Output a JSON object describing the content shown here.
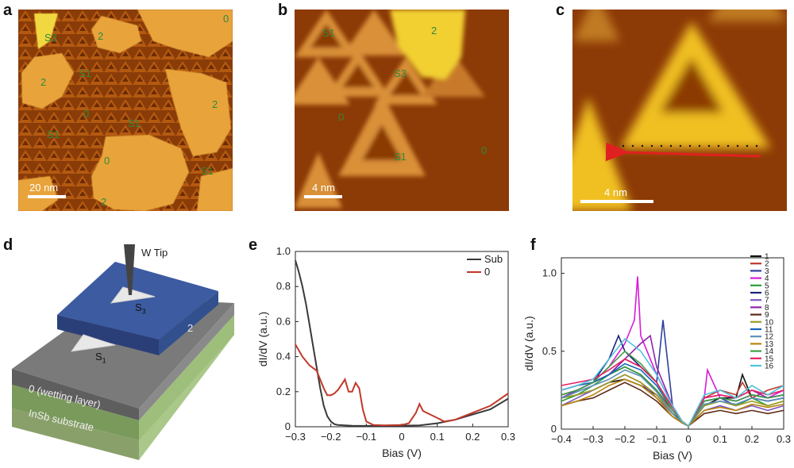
{
  "panels": {
    "a": {
      "letter": "a",
      "scale": "20 nm",
      "labels": [
        "S3",
        "2",
        "0",
        "2",
        "S1",
        "S1",
        "0",
        "S1",
        "0",
        "2",
        "2",
        "S1",
        "2"
      ]
    },
    "b": {
      "letter": "b",
      "scale": "4 nm",
      "labels": [
        "S1",
        "2",
        "S3",
        "0",
        "S1",
        "0"
      ]
    },
    "c": {
      "letter": "c",
      "scale": "4 nm"
    },
    "d": {
      "letter": "d",
      "tip": "W Tip",
      "s3": "S",
      "s3sub": "3",
      "s1": "S",
      "s1sub": "1",
      "layer2": "2",
      "wetting": "0 (wetting layer)",
      "substrate": "InSb substrate"
    },
    "e": {
      "letter": "e"
    },
    "f": {
      "letter": "f"
    }
  },
  "chart_data": [
    {
      "type": "line",
      "panel": "e",
      "xlabel": "Bias (V)",
      "ylabel": "dI/dV (a.u.)",
      "xlim": [
        -0.3,
        0.3
      ],
      "ylim": [
        0,
        1.0
      ],
      "xticks": [
        "-0.3",
        "-0.2",
        "-0.1",
        "0",
        "0.1",
        "0.2",
        "0.3"
      ],
      "yticks": [
        "0",
        "0.2",
        "0.4",
        "0.6",
        "0.8",
        "1.0"
      ],
      "legend_position": "top-right",
      "series": [
        {
          "name": "Sub",
          "color": "#3a3a3a",
          "x": [
            -0.3,
            -0.29,
            -0.28,
            -0.27,
            -0.26,
            -0.25,
            -0.24,
            -0.23,
            -0.22,
            -0.21,
            -0.2,
            -0.19,
            -0.18,
            -0.16,
            -0.14,
            -0.12,
            -0.1,
            -0.05,
            0,
            0.05,
            0.1,
            0.15,
            0.2,
            0.25,
            0.3
          ],
          "y": [
            0.95,
            0.88,
            0.8,
            0.7,
            0.58,
            0.46,
            0.34,
            0.22,
            0.12,
            0.06,
            0.03,
            0.015,
            0.01,
            0.008,
            0.006,
            0.005,
            0.005,
            0.005,
            0.006,
            0.008,
            0.02,
            0.04,
            0.07,
            0.1,
            0.16
          ]
        },
        {
          "name": "0",
          "color": "#c0392b",
          "x": [
            -0.3,
            -0.28,
            -0.26,
            -0.24,
            -0.22,
            -0.21,
            -0.2,
            -0.19,
            -0.18,
            -0.17,
            -0.16,
            -0.15,
            -0.14,
            -0.13,
            -0.12,
            -0.11,
            -0.1,
            -0.08,
            -0.05,
            0,
            0.02,
            0.04,
            0.05,
            0.06,
            0.08,
            0.1,
            0.12,
            0.15,
            0.2,
            0.25,
            0.3
          ],
          "y": [
            0.47,
            0.4,
            0.35,
            0.32,
            0.22,
            0.18,
            0.18,
            0.19,
            0.21,
            0.24,
            0.27,
            0.2,
            0.2,
            0.25,
            0.22,
            0.1,
            0.03,
            0.01,
            0.008,
            0.01,
            0.02,
            0.08,
            0.13,
            0.09,
            0.07,
            0.05,
            0.03,
            0.04,
            0.08,
            0.12,
            0.19
          ]
        }
      ]
    },
    {
      "type": "line",
      "panel": "f",
      "xlabel": "Bias (V)",
      "ylabel": "dI/dV (a.u.)",
      "xlim": [
        -0.4,
        0.3
      ],
      "ylim": [
        0,
        1.1
      ],
      "xticks": [
        "-0.4",
        "-0.3",
        "-0.2",
        "-0.1",
        "0",
        "0.1",
        "0.2",
        "0.3"
      ],
      "yticks": [
        "0",
        "0.5",
        "1.0"
      ],
      "legend_position": "top-right",
      "series": [
        {
          "name": "1",
          "color": "#111111",
          "x": [
            -0.4,
            -0.35,
            -0.3,
            -0.25,
            -0.2,
            -0.15,
            -0.1,
            -0.05,
            -0.02,
            0,
            0.05,
            0.1,
            0.15,
            0.17,
            0.2,
            0.25,
            0.3
          ],
          "y": [
            0.2,
            0.22,
            0.25,
            0.3,
            0.32,
            0.28,
            0.22,
            0.1,
            0.05,
            0.02,
            0.15,
            0.2,
            0.2,
            0.35,
            0.2,
            0.18,
            0.2
          ]
        },
        {
          "name": "2",
          "color": "#c0392b",
          "x": [
            -0.4,
            -0.35,
            -0.3,
            -0.25,
            -0.2,
            -0.15,
            -0.1,
            -0.05,
            -0.02,
            0,
            0.05,
            0.1,
            0.15,
            0.17,
            0.2,
            0.25,
            0.3
          ],
          "y": [
            0.25,
            0.28,
            0.3,
            0.35,
            0.4,
            0.35,
            0.25,
            0.12,
            0.05,
            0.02,
            0.2,
            0.25,
            0.22,
            0.3,
            0.2,
            0.25,
            0.28
          ]
        },
        {
          "name": "3",
          "color": "#2e3f9e",
          "x": [
            -0.4,
            -0.35,
            -0.3,
            -0.25,
            -0.2,
            -0.15,
            -0.1,
            -0.08,
            -0.05,
            -0.02,
            0,
            0.05,
            0.1,
            0.15,
            0.2,
            0.25,
            0.3
          ],
          "y": [
            0.2,
            0.25,
            0.3,
            0.35,
            0.45,
            0.4,
            0.3,
            0.7,
            0.15,
            0.05,
            0.02,
            0.18,
            0.2,
            0.15,
            0.2,
            0.18,
            0.2
          ]
        },
        {
          "name": "4",
          "color": "#d81bd8",
          "x": [
            -0.4,
            -0.35,
            -0.3,
            -0.25,
            -0.2,
            -0.17,
            -0.16,
            -0.15,
            -0.1,
            -0.05,
            -0.02,
            0,
            0.05,
            0.06,
            0.1,
            0.15,
            0.2,
            0.25,
            0.3
          ],
          "y": [
            0.25,
            0.28,
            0.3,
            0.4,
            0.55,
            0.7,
            0.98,
            0.6,
            0.35,
            0.15,
            0.05,
            0.02,
            0.2,
            0.38,
            0.2,
            0.18,
            0.22,
            0.2,
            0.25
          ]
        },
        {
          "name": "5",
          "color": "#2a9d3a",
          "x": [
            -0.4,
            -0.35,
            -0.3,
            -0.25,
            -0.2,
            -0.15,
            -0.1,
            -0.05,
            -0.02,
            0,
            0.05,
            0.1,
            0.15,
            0.2,
            0.25,
            0.3
          ],
          "y": [
            0.18,
            0.22,
            0.28,
            0.35,
            0.4,
            0.35,
            0.25,
            0.1,
            0.04,
            0.02,
            0.15,
            0.18,
            0.15,
            0.2,
            0.15,
            0.18
          ]
        },
        {
          "name": "6",
          "color": "#1a237e",
          "x": [
            -0.4,
            -0.35,
            -0.3,
            -0.25,
            -0.22,
            -0.2,
            -0.15,
            -0.1,
            -0.05,
            -0.02,
            0,
            0.05,
            0.1,
            0.15,
            0.2,
            0.25,
            0.3
          ],
          "y": [
            0.22,
            0.25,
            0.3,
            0.45,
            0.6,
            0.5,
            0.4,
            0.3,
            0.12,
            0.05,
            0.02,
            0.18,
            0.2,
            0.18,
            0.22,
            0.2,
            0.22
          ]
        },
        {
          "name": "7",
          "color": "#7e57c2",
          "x": [
            -0.4,
            -0.35,
            -0.3,
            -0.25,
            -0.2,
            -0.15,
            -0.1,
            -0.05,
            -0.02,
            0,
            0.05,
            0.1,
            0.15,
            0.2,
            0.25,
            0.3
          ],
          "y": [
            0.15,
            0.2,
            0.25,
            0.3,
            0.35,
            0.3,
            0.2,
            0.1,
            0.04,
            0.02,
            0.12,
            0.15,
            0.12,
            0.15,
            0.12,
            0.15
          ]
        },
        {
          "name": "8",
          "color": "#8e24aa",
          "x": [
            -0.4,
            -0.35,
            -0.3,
            -0.25,
            -0.2,
            -0.15,
            -0.12,
            -0.1,
            -0.05,
            -0.02,
            0,
            0.05,
            0.1,
            0.15,
            0.2,
            0.25,
            0.3
          ],
          "y": [
            0.2,
            0.25,
            0.3,
            0.35,
            0.45,
            0.55,
            0.6,
            0.4,
            0.15,
            0.05,
            0.02,
            0.2,
            0.22,
            0.2,
            0.25,
            0.2,
            0.22
          ]
        },
        {
          "name": "9",
          "color": "#5d2a1a",
          "x": [
            -0.4,
            -0.35,
            -0.3,
            -0.25,
            -0.2,
            -0.15,
            -0.1,
            -0.05,
            -0.02,
            0,
            0.05,
            0.1,
            0.15,
            0.2,
            0.25,
            0.3
          ],
          "y": [
            0.15,
            0.18,
            0.2,
            0.25,
            0.3,
            0.25,
            0.18,
            0.08,
            0.04,
            0.02,
            0.1,
            0.12,
            0.1,
            0.12,
            0.1,
            0.12
          ]
        },
        {
          "name": "10",
          "color": "#9e9d24",
          "x": [
            -0.4,
            -0.35,
            -0.3,
            -0.25,
            -0.2,
            -0.15,
            -0.1,
            -0.05,
            -0.02,
            0,
            0.05,
            0.1,
            0.15,
            0.2,
            0.25,
            0.3
          ],
          "y": [
            0.2,
            0.22,
            0.25,
            0.3,
            0.35,
            0.3,
            0.22,
            0.1,
            0.04,
            0.02,
            0.15,
            0.18,
            0.15,
            0.18,
            0.15,
            0.18
          ]
        },
        {
          "name": "11",
          "color": "#1565c0",
          "x": [
            -0.4,
            -0.35,
            -0.3,
            -0.25,
            -0.2,
            -0.15,
            -0.1,
            -0.05,
            -0.02,
            0,
            0.05,
            0.1,
            0.15,
            0.2,
            0.25,
            0.3
          ],
          "y": [
            0.25,
            0.28,
            0.3,
            0.35,
            0.42,
            0.38,
            0.28,
            0.12,
            0.05,
            0.02,
            0.18,
            0.2,
            0.18,
            0.22,
            0.2,
            0.22
          ]
        },
        {
          "name": "12",
          "color": "#5c8fb5",
          "x": [
            -0.4,
            -0.35,
            -0.3,
            -0.25,
            -0.2,
            -0.15,
            -0.1,
            -0.05,
            -0.02,
            0,
            0.05,
            0.1,
            0.15,
            0.2,
            0.25,
            0.3
          ],
          "y": [
            0.2,
            0.24,
            0.28,
            0.32,
            0.38,
            0.34,
            0.24,
            0.1,
            0.04,
            0.02,
            0.16,
            0.18,
            0.16,
            0.2,
            0.18,
            0.2
          ]
        },
        {
          "name": "13",
          "color": "#b8860b",
          "x": [
            -0.4,
            -0.35,
            -0.3,
            -0.25,
            -0.2,
            -0.15,
            -0.1,
            -0.05,
            -0.02,
            0,
            0.05,
            0.1,
            0.15,
            0.2,
            0.25,
            0.3
          ],
          "y": [
            0.15,
            0.18,
            0.22,
            0.28,
            0.32,
            0.28,
            0.2,
            0.08,
            0.04,
            0.02,
            0.12,
            0.14,
            0.12,
            0.16,
            0.14,
            0.16
          ]
        },
        {
          "name": "14",
          "color": "#43a047",
          "x": [
            -0.4,
            -0.35,
            -0.3,
            -0.25,
            -0.2,
            -0.15,
            -0.1,
            -0.05,
            -0.02,
            0,
            0.05,
            0.1,
            0.15,
            0.2,
            0.25,
            0.3
          ],
          "y": [
            0.22,
            0.25,
            0.3,
            0.4,
            0.5,
            0.42,
            0.3,
            0.12,
            0.05,
            0.02,
            0.18,
            0.2,
            0.18,
            0.22,
            0.2,
            0.22
          ]
        },
        {
          "name": "15",
          "color": "#e91e63",
          "x": [
            -0.4,
            -0.35,
            -0.3,
            -0.25,
            -0.2,
            -0.15,
            -0.1,
            -0.05,
            -0.02,
            0,
            0.05,
            0.1,
            0.15,
            0.2,
            0.25,
            0.3
          ],
          "y": [
            0.28,
            0.3,
            0.32,
            0.38,
            0.45,
            0.4,
            0.3,
            0.14,
            0.05,
            0.02,
            0.2,
            0.22,
            0.2,
            0.25,
            0.22,
            0.25
          ]
        },
        {
          "name": "16",
          "color": "#4fc3d9",
          "x": [
            -0.4,
            -0.35,
            -0.3,
            -0.25,
            -0.2,
            -0.15,
            -0.1,
            -0.05,
            -0.02,
            0,
            0.05,
            0.1,
            0.15,
            0.2,
            0.25,
            0.3
          ],
          "y": [
            0.25,
            0.28,
            0.32,
            0.45,
            0.58,
            0.5,
            0.35,
            0.15,
            0.05,
            0.02,
            0.22,
            0.25,
            0.2,
            0.28,
            0.22,
            0.28
          ]
        }
      ]
    }
  ]
}
